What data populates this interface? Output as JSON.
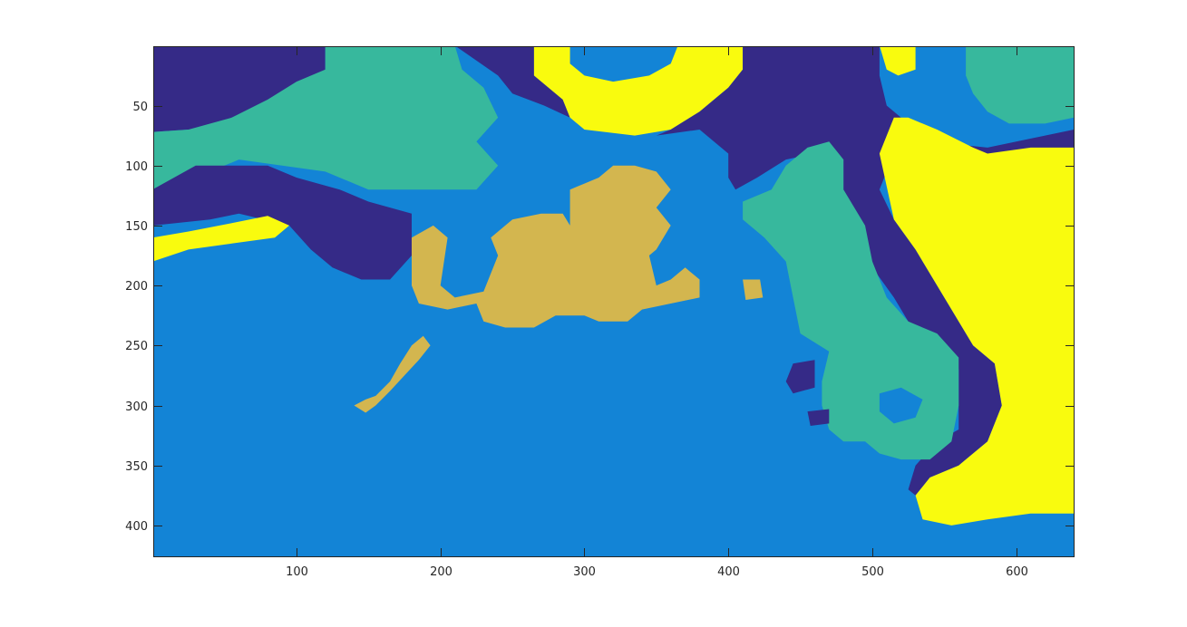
{
  "chart_data": {
    "type": "heatmap",
    "title": "",
    "xlabel": "",
    "ylabel": "",
    "xlim": [
      0.5,
      640.5
    ],
    "ylim": [
      0.5,
      426.5
    ],
    "y_direction": "reversed",
    "grid": false,
    "x_ticks": [
      100,
      200,
      300,
      400,
      500,
      600
    ],
    "x_tick_labels": [
      "100",
      "200",
      "300",
      "400",
      "500",
      "600"
    ],
    "y_ticks": [
      50,
      100,
      150,
      200,
      250,
      300,
      350,
      400
    ],
    "y_tick_labels": [
      "50",
      "100",
      "150",
      "200",
      "250",
      "300",
      "350",
      "400"
    ],
    "colormap": [
      "#352A87",
      "#1384D6",
      "#37B89D",
      "#D3B64F",
      "#F9FB0E"
    ],
    "categories": [
      1,
      2,
      3,
      4,
      5
    ],
    "background_class": 2,
    "regions": [
      {
        "class": 1,
        "polygon": [
          [
            0,
            0
          ],
          [
            120,
            0
          ],
          [
            120,
            20
          ],
          [
            95,
            40
          ],
          [
            70,
            55
          ],
          [
            55,
            70
          ],
          [
            25,
            70
          ],
          [
            0,
            72
          ]
        ]
      },
      {
        "class": 3,
        "polygon": [
          [
            120,
            0
          ],
          [
            210,
            0
          ],
          [
            215,
            20
          ],
          [
            230,
            35
          ],
          [
            240,
            60
          ],
          [
            225,
            80
          ],
          [
            240,
            100
          ],
          [
            225,
            120
          ],
          [
            150,
            120
          ],
          [
            120,
            105
          ],
          [
            90,
            100
          ],
          [
            60,
            95
          ],
          [
            30,
            110
          ],
          [
            0,
            120
          ],
          [
            0,
            72
          ],
          [
            25,
            70
          ],
          [
            55,
            60
          ],
          [
            80,
            45
          ],
          [
            100,
            30
          ],
          [
            120,
            20
          ]
        ]
      },
      {
        "class": 1,
        "polygon": [
          [
            0,
            120
          ],
          [
            30,
            100
          ],
          [
            60,
            100
          ],
          [
            80,
            100
          ],
          [
            100,
            110
          ],
          [
            130,
            120
          ],
          [
            150,
            130
          ],
          [
            180,
            140
          ],
          [
            180,
            175
          ],
          [
            165,
            195
          ],
          [
            145,
            195
          ],
          [
            125,
            185
          ],
          [
            110,
            170
          ],
          [
            95,
            150
          ],
          [
            60,
            140
          ],
          [
            40,
            145
          ],
          [
            0,
            150
          ]
        ]
      },
      {
        "class": 5,
        "polygon": [
          [
            0,
            160
          ],
          [
            25,
            155
          ],
          [
            55,
            148
          ],
          [
            80,
            142
          ],
          [
            95,
            150
          ],
          [
            85,
            160
          ],
          [
            55,
            165
          ],
          [
            25,
            170
          ],
          [
            0,
            180
          ]
        ]
      },
      {
        "class": 1,
        "polygon": [
          [
            210,
            0
          ],
          [
            265,
            0
          ],
          [
            265,
            25
          ],
          [
            285,
            45
          ],
          [
            290,
            60
          ],
          [
            272,
            50
          ],
          [
            250,
            40
          ],
          [
            240,
            25
          ]
        ]
      },
      {
        "class": 5,
        "polygon": [
          [
            265,
            0
          ],
          [
            290,
            0
          ],
          [
            290,
            15
          ],
          [
            300,
            25
          ],
          [
            320,
            30
          ],
          [
            345,
            25
          ],
          [
            360,
            15
          ],
          [
            365,
            0
          ],
          [
            410,
            0
          ],
          [
            410,
            20
          ],
          [
            400,
            35
          ],
          [
            380,
            55
          ],
          [
            360,
            70
          ],
          [
            335,
            75
          ],
          [
            300,
            70
          ],
          [
            290,
            60
          ],
          [
            285,
            45
          ],
          [
            265,
            25
          ]
        ]
      },
      {
        "class": 1,
        "polygon": [
          [
            410,
            0
          ],
          [
            505,
            0
          ],
          [
            505,
            25
          ],
          [
            510,
            50
          ],
          [
            525,
            65
          ],
          [
            540,
            80
          ],
          [
            580,
            85
          ],
          [
            620,
            75
          ],
          [
            640,
            70
          ],
          [
            640,
            95
          ],
          [
            620,
            100
          ],
          [
            590,
            100
          ],
          [
            560,
            95
          ],
          [
            540,
            100
          ],
          [
            510,
            105
          ],
          [
            505,
            120
          ],
          [
            515,
            145
          ],
          [
            530,
            170
          ],
          [
            545,
            200
          ],
          [
            560,
            230
          ],
          [
            570,
            250
          ],
          [
            585,
            265
          ],
          [
            590,
            300
          ],
          [
            580,
            330
          ],
          [
            560,
            350
          ],
          [
            540,
            360
          ],
          [
            530,
            375
          ],
          [
            525,
            370
          ],
          [
            530,
            350
          ],
          [
            545,
            330
          ],
          [
            560,
            320
          ],
          [
            560,
            300
          ],
          [
            560,
            270
          ],
          [
            550,
            250
          ],
          [
            530,
            240
          ],
          [
            515,
            210
          ],
          [
            500,
            185
          ],
          [
            490,
            160
          ],
          [
            480,
            130
          ],
          [
            475,
            105
          ],
          [
            460,
            90
          ],
          [
            440,
            95
          ],
          [
            420,
            110
          ],
          [
            405,
            120
          ],
          [
            400,
            110
          ],
          [
            400,
            90
          ],
          [
            380,
            70
          ],
          [
            350,
            75
          ],
          [
            340,
            80
          ],
          [
            360,
            70
          ],
          [
            380,
            55
          ],
          [
            400,
            35
          ],
          [
            410,
            20
          ]
        ]
      },
      {
        "class": 5,
        "polygon": [
          [
            505,
            0
          ],
          [
            530,
            0
          ],
          [
            530,
            20
          ],
          [
            518,
            25
          ],
          [
            510,
            20
          ]
        ]
      },
      {
        "class": 5,
        "polygon": [
          [
            505,
            90
          ],
          [
            515,
            60
          ],
          [
            525,
            60
          ],
          [
            545,
            70
          ],
          [
            570,
            85
          ],
          [
            580,
            90
          ],
          [
            610,
            85
          ],
          [
            640,
            85
          ],
          [
            640,
            390
          ],
          [
            610,
            390
          ],
          [
            580,
            395
          ],
          [
            555,
            400
          ],
          [
            535,
            395
          ],
          [
            530,
            375
          ],
          [
            540,
            360
          ],
          [
            560,
            350
          ],
          [
            580,
            330
          ],
          [
            590,
            300
          ],
          [
            585,
            265
          ],
          [
            570,
            250
          ],
          [
            560,
            230
          ],
          [
            545,
            200
          ],
          [
            530,
            170
          ],
          [
            515,
            145
          ]
        ]
      },
      {
        "class": 3,
        "polygon": [
          [
            565,
            0
          ],
          [
            640,
            0
          ],
          [
            640,
            60
          ],
          [
            620,
            65
          ],
          [
            595,
            65
          ],
          [
            580,
            55
          ],
          [
            570,
            40
          ],
          [
            565,
            25
          ]
        ]
      },
      {
        "class": 3,
        "polygon": [
          [
            410,
            130
          ],
          [
            430,
            120
          ],
          [
            440,
            100
          ],
          [
            455,
            85
          ],
          [
            470,
            80
          ],
          [
            480,
            95
          ],
          [
            480,
            120
          ],
          [
            495,
            150
          ],
          [
            500,
            180
          ],
          [
            510,
            210
          ],
          [
            525,
            230
          ],
          [
            545,
            240
          ],
          [
            560,
            260
          ],
          [
            560,
            300
          ],
          [
            555,
            330
          ],
          [
            540,
            345
          ],
          [
            520,
            345
          ],
          [
            505,
            340
          ],
          [
            495,
            330
          ],
          [
            480,
            330
          ],
          [
            470,
            320
          ],
          [
            465,
            300
          ],
          [
            465,
            280
          ],
          [
            470,
            255
          ],
          [
            450,
            240
          ],
          [
            445,
            210
          ],
          [
            440,
            180
          ],
          [
            425,
            160
          ],
          [
            410,
            145
          ]
        ]
      },
      {
        "class": 2,
        "polygon": [
          [
            505,
            290
          ],
          [
            520,
            285
          ],
          [
            535,
            295
          ],
          [
            530,
            310
          ],
          [
            515,
            315
          ],
          [
            505,
            305
          ]
        ]
      },
      {
        "class": 1,
        "polygon": [
          [
            445,
            265
          ],
          [
            460,
            262
          ],
          [
            460,
            285
          ],
          [
            445,
            290
          ],
          [
            440,
            280
          ]
        ]
      },
      {
        "class": 1,
        "polygon": [
          [
            455,
            305
          ],
          [
            470,
            303
          ],
          [
            470,
            315
          ],
          [
            457,
            317
          ]
        ]
      },
      {
        "class": 4,
        "polygon": [
          [
            180,
            160
          ],
          [
            195,
            150
          ],
          [
            205,
            160
          ],
          [
            200,
            200
          ],
          [
            210,
            210
          ],
          [
            230,
            205
          ],
          [
            240,
            175
          ],
          [
            235,
            160
          ],
          [
            250,
            145
          ],
          [
            270,
            140
          ],
          [
            285,
            140
          ],
          [
            290,
            150
          ],
          [
            290,
            120
          ],
          [
            300,
            115
          ],
          [
            310,
            110
          ],
          [
            320,
            100
          ],
          [
            335,
            100
          ],
          [
            350,
            105
          ],
          [
            360,
            120
          ],
          [
            350,
            135
          ],
          [
            360,
            150
          ],
          [
            350,
            170
          ],
          [
            345,
            175
          ],
          [
            350,
            200
          ],
          [
            360,
            195
          ],
          [
            370,
            185
          ],
          [
            380,
            195
          ],
          [
            380,
            210
          ],
          [
            360,
            215
          ],
          [
            340,
            220
          ],
          [
            330,
            230
          ],
          [
            310,
            230
          ],
          [
            300,
            225
          ],
          [
            280,
            225
          ],
          [
            265,
            235
          ],
          [
            245,
            235
          ],
          [
            230,
            230
          ],
          [
            225,
            215
          ],
          [
            205,
            220
          ],
          [
            185,
            215
          ],
          [
            180,
            200
          ]
        ]
      },
      {
        "class": 4,
        "polygon": [
          [
            140,
            300
          ],
          [
            148,
            295
          ],
          [
            155,
            292
          ],
          [
            165,
            280
          ],
          [
            172,
            265
          ],
          [
            180,
            250
          ],
          [
            188,
            242
          ],
          [
            193,
            250
          ],
          [
            185,
            262
          ],
          [
            175,
            275
          ],
          [
            165,
            288
          ],
          [
            155,
            300
          ],
          [
            148,
            306
          ]
        ]
      },
      {
        "class": 4,
        "polygon": [
          [
            410,
            195
          ],
          [
            422,
            195
          ],
          [
            424,
            210
          ],
          [
            412,
            212
          ]
        ]
      }
    ]
  }
}
